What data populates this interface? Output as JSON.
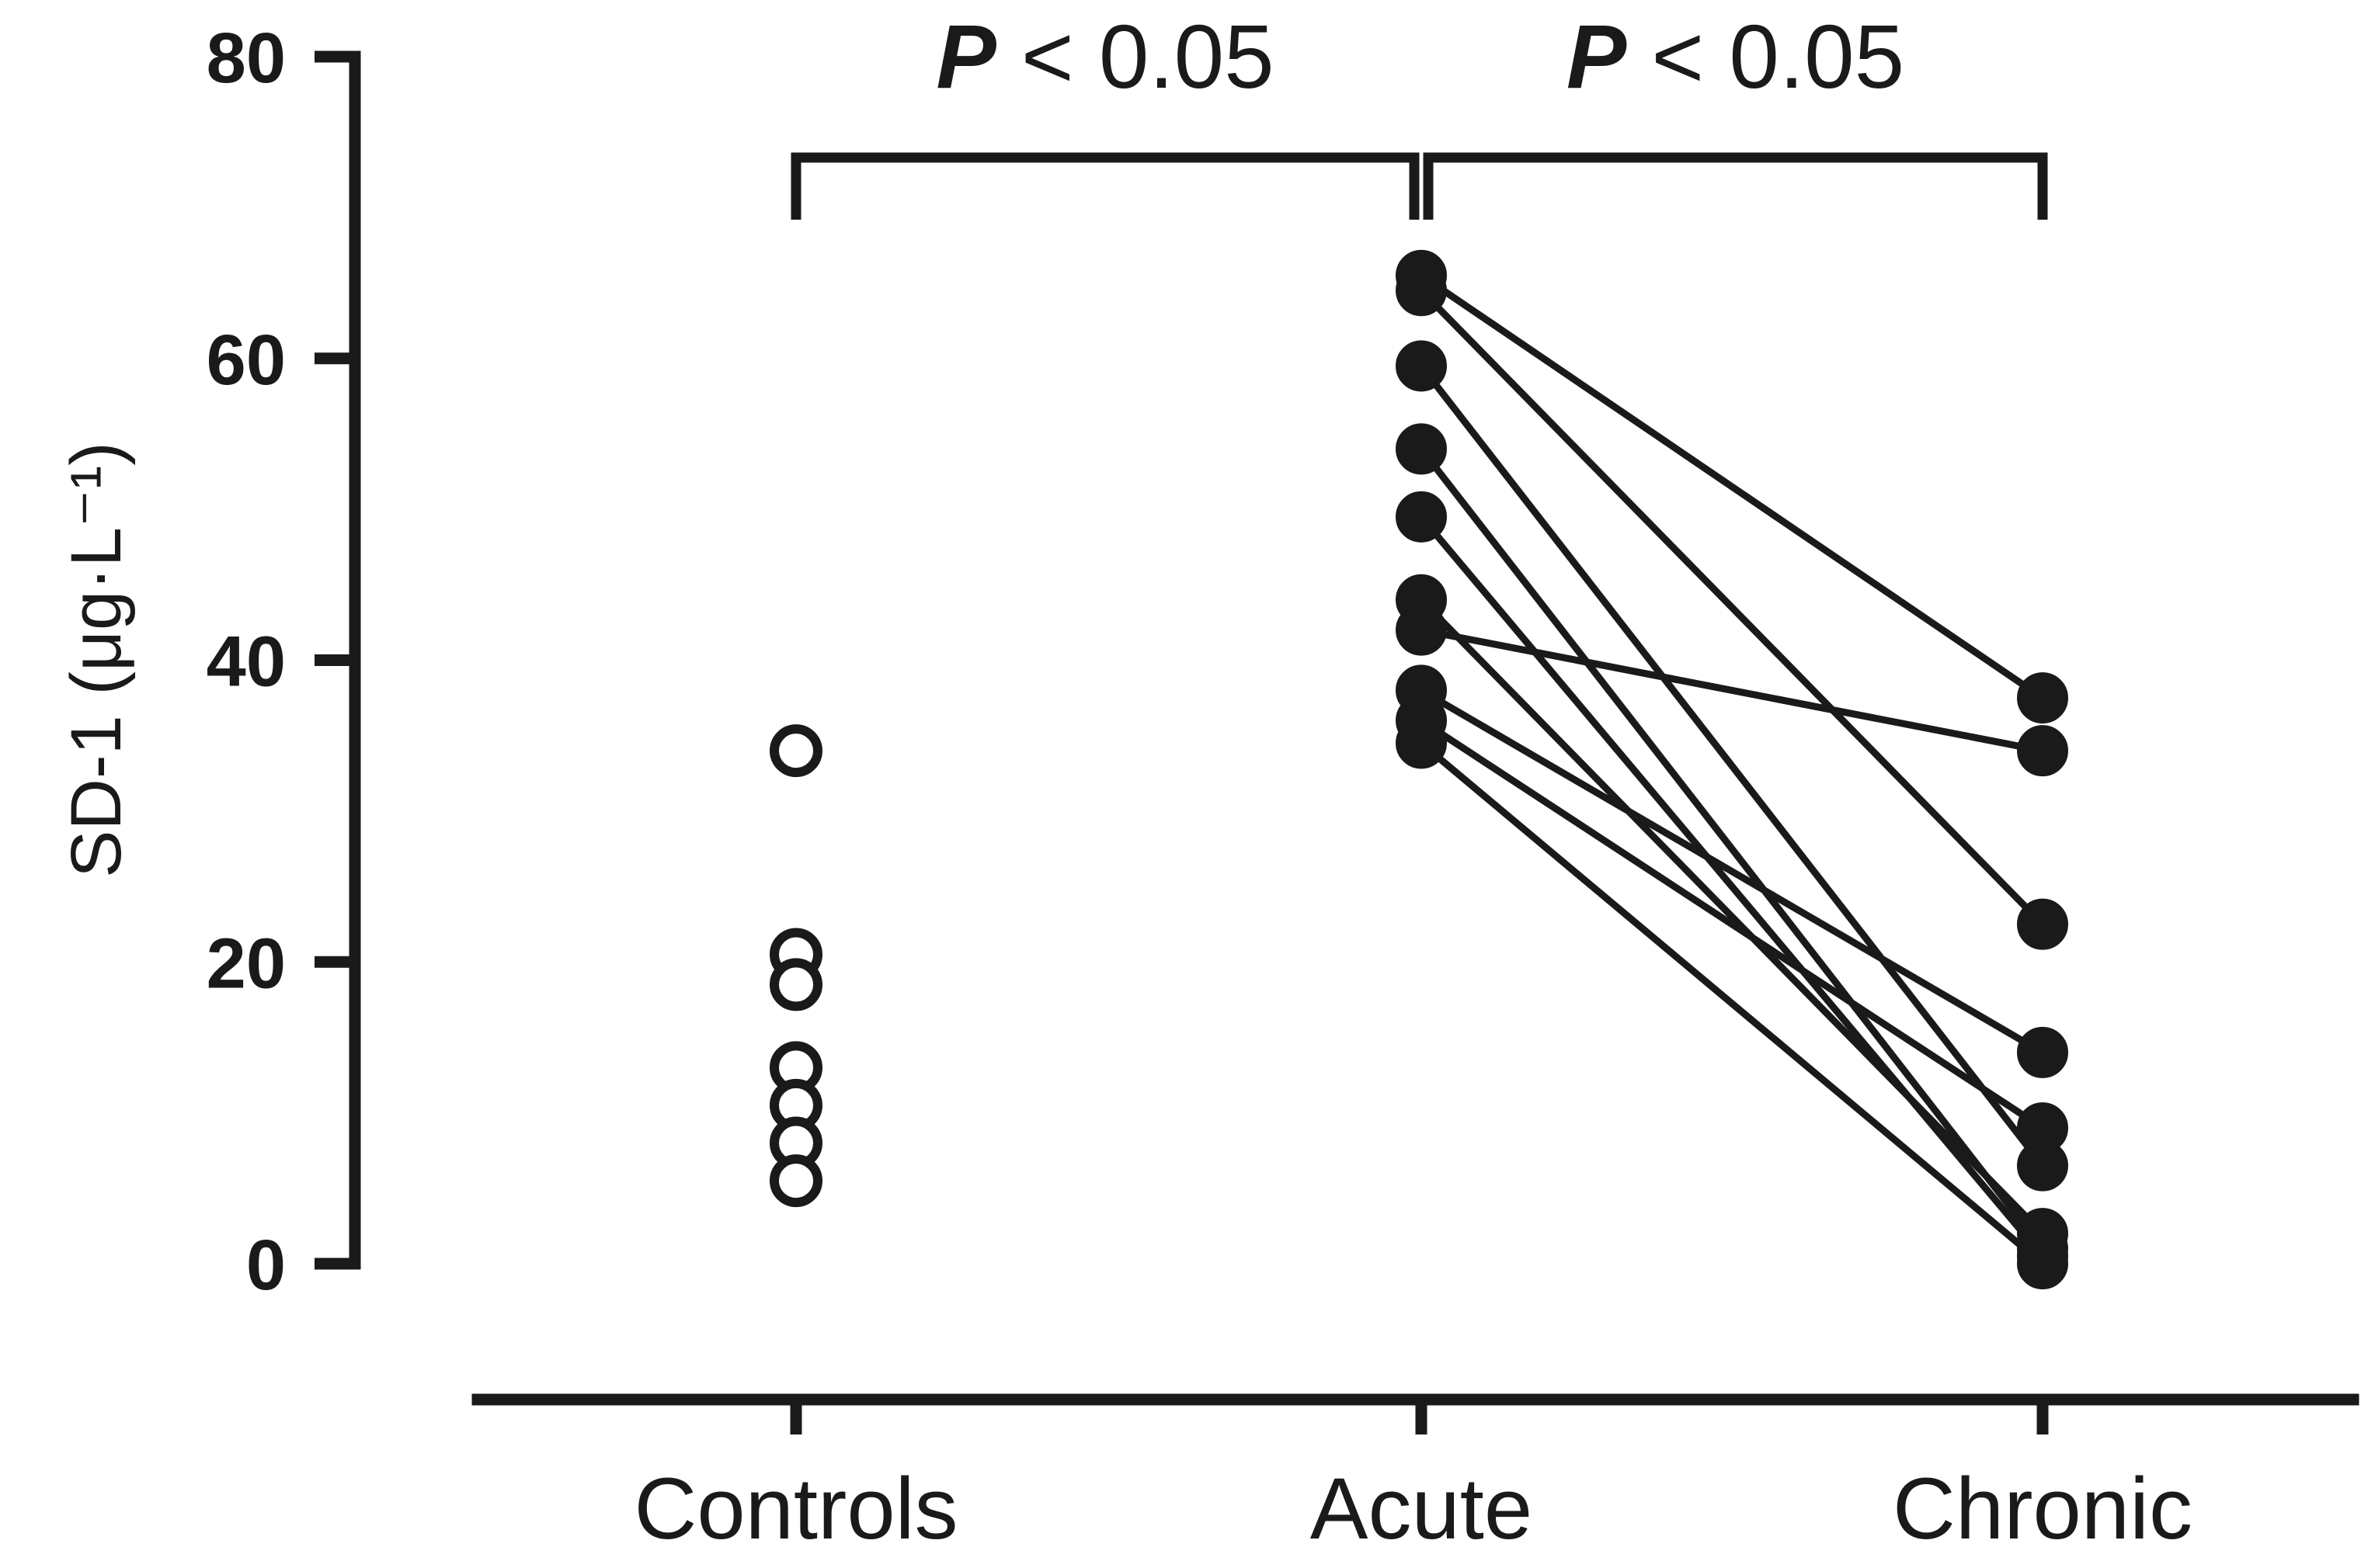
{
  "chart_data": {
    "type": "scatter",
    "ylabel": "SD-1 (μg·L⁻¹)",
    "xlabel": "",
    "ylim": [
      0,
      80
    ],
    "yticks": [
      0,
      20,
      40,
      60,
      80
    ],
    "categories": [
      "Controls",
      "Acute",
      "Chronic"
    ],
    "series": [
      {
        "category": "Controls",
        "marker": "open-circle",
        "values": [
          34,
          20.5,
          18.5,
          13,
          10.5,
          8,
          5.5
        ]
      },
      {
        "category": "Acute",
        "marker": "filled-circle",
        "values": [
          65.5,
          64.5,
          59.5,
          54,
          49.5,
          44,
          42,
          38,
          36,
          34.5
        ]
      },
      {
        "category": "Chronic",
        "marker": "filled-circle",
        "values": [
          37.5,
          34,
          22.5,
          14,
          9,
          6.5,
          2,
          1,
          0.5,
          0
        ]
      }
    ],
    "pairs": [
      {
        "acute": 65.5,
        "chronic": 37.5
      },
      {
        "acute": 64.5,
        "chronic": 22.5
      },
      {
        "acute": 59.5,
        "chronic": 6.5
      },
      {
        "acute": 54,
        "chronic": 1
      },
      {
        "acute": 49.5,
        "chronic": 0.5
      },
      {
        "acute": 44,
        "chronic": 2
      },
      {
        "acute": 42,
        "chronic": 34
      },
      {
        "acute": 38,
        "chronic": 14
      },
      {
        "acute": 36,
        "chronic": 9
      },
      {
        "acute": 34.5,
        "chronic": 0
      }
    ],
    "significance": [
      {
        "from": "Controls",
        "to": "Acute",
        "p_symbol": "P",
        "text": " < 0.05"
      },
      {
        "from": "Acute",
        "to": "Chronic",
        "p_symbol": "P",
        "text": " < 0.05"
      }
    ],
    "grid": false
  }
}
